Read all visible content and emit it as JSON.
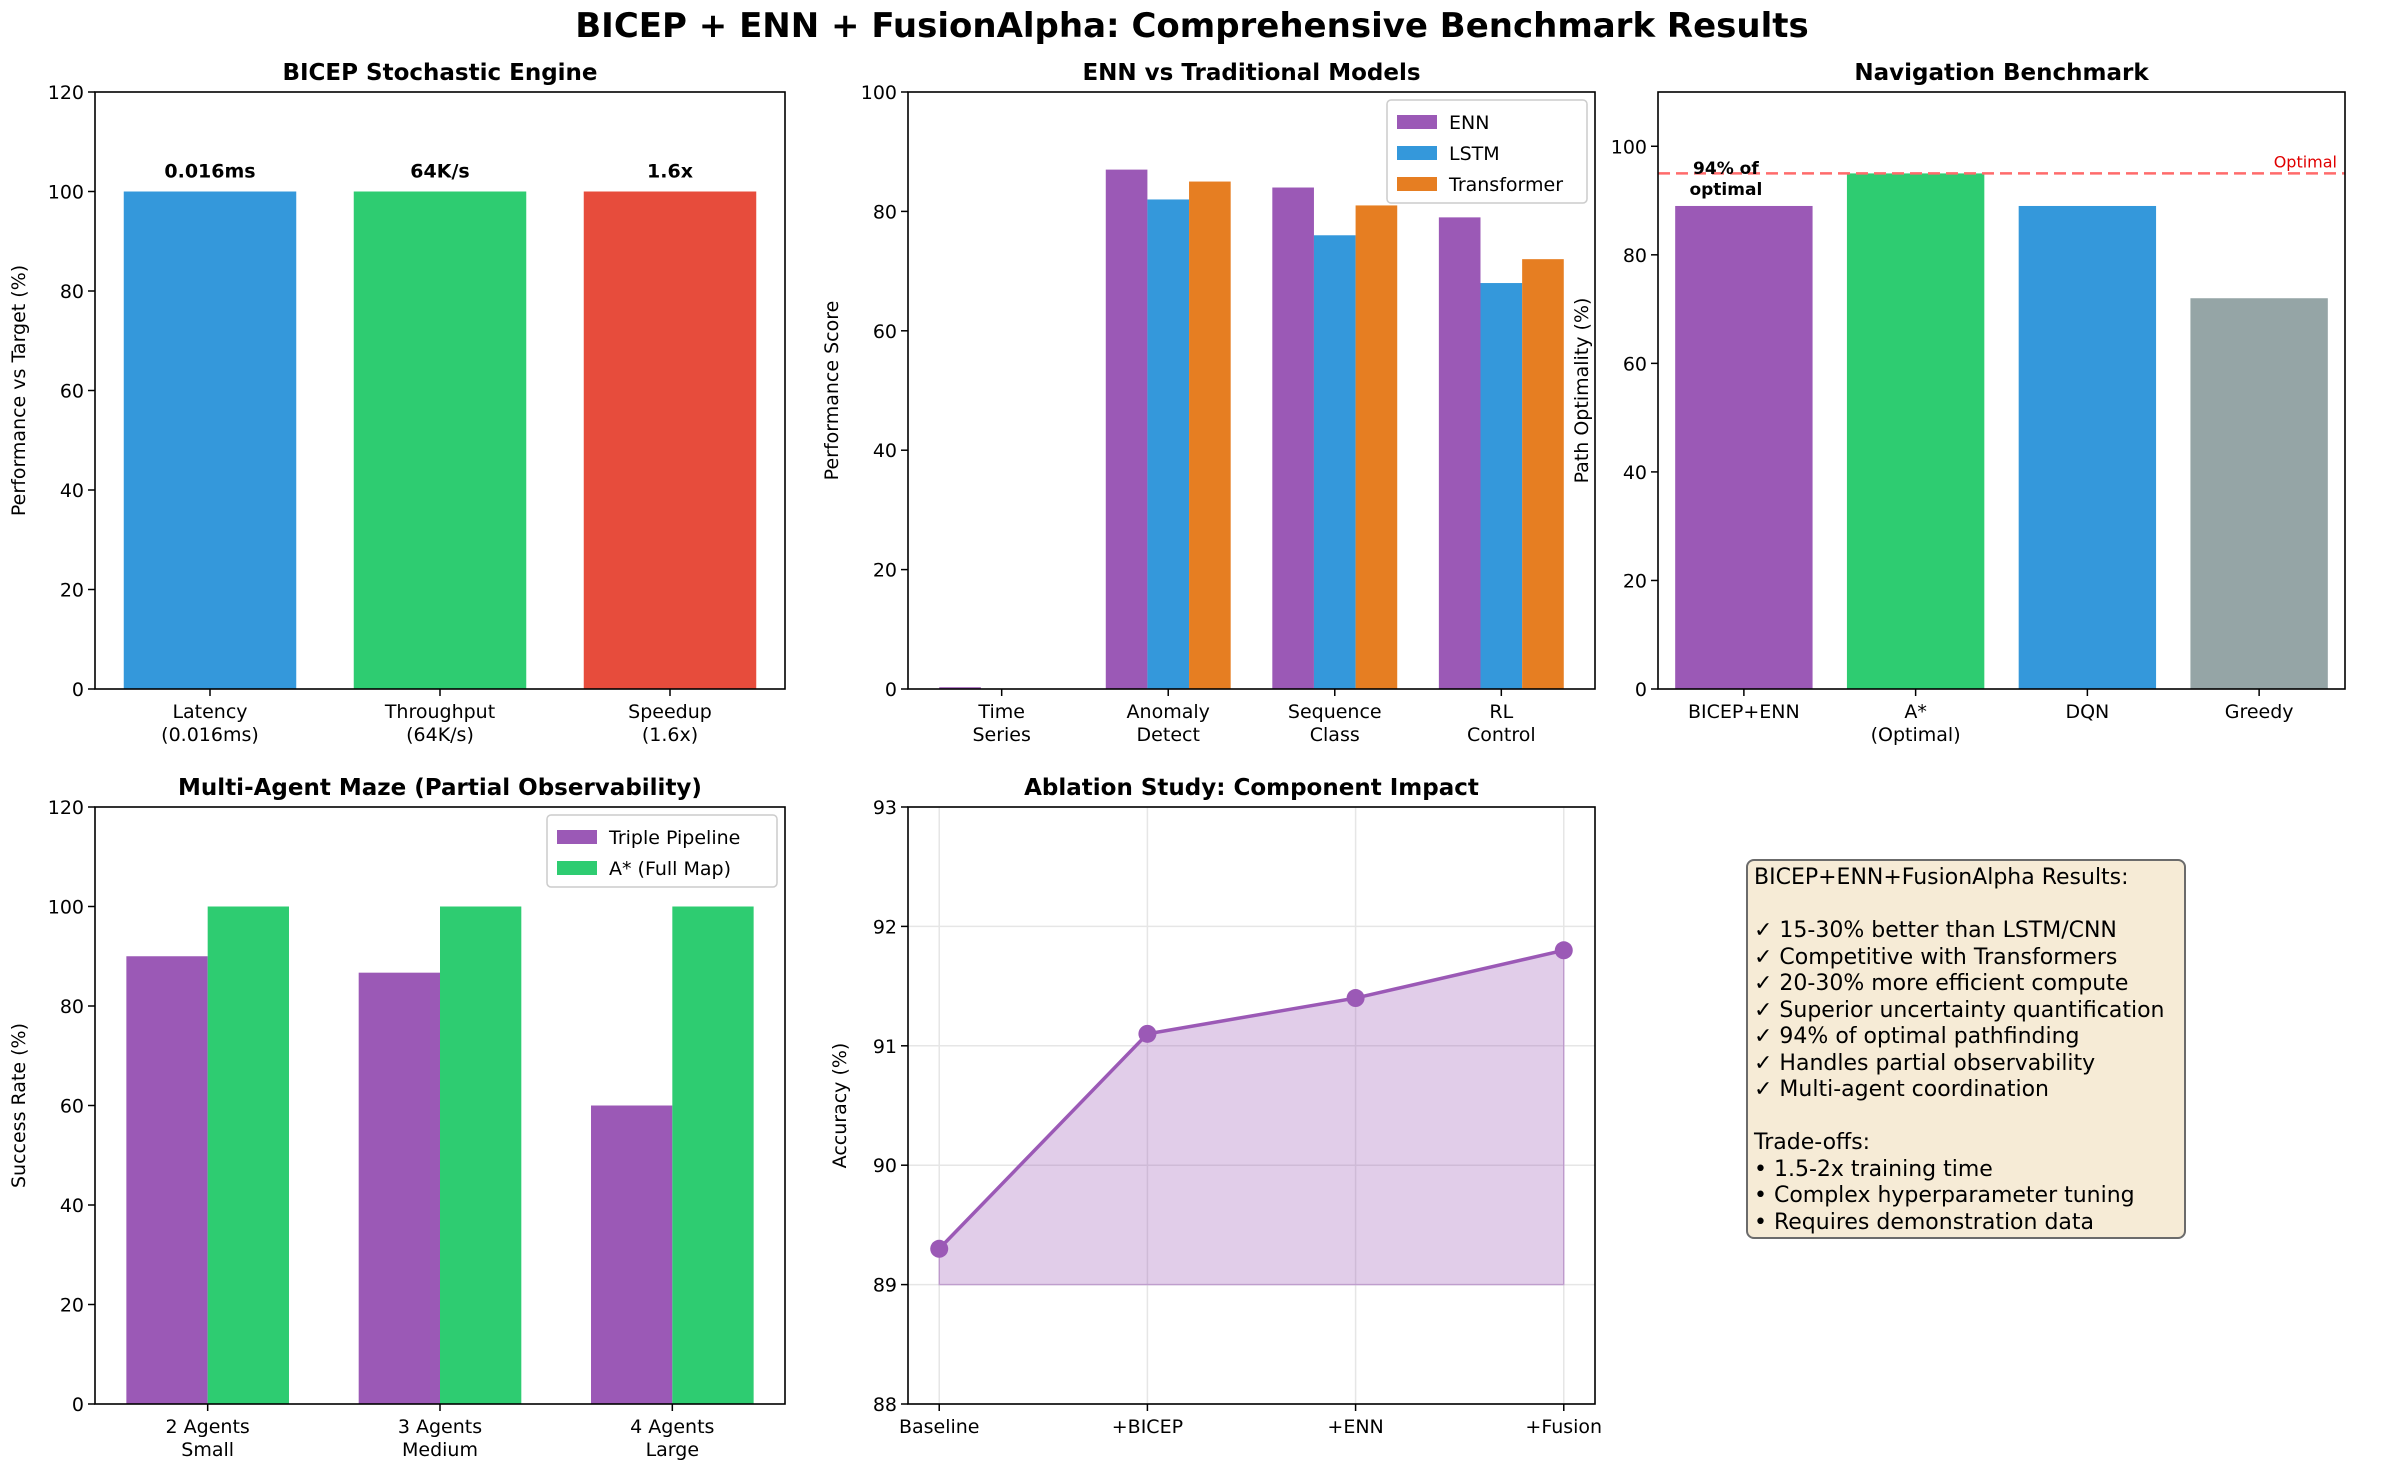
{
  "figure": {
    "title": "BICEP + ENN + FusionAlpha: Comprehensive Benchmark Results"
  },
  "chart_data": [
    {
      "id": "p1",
      "type": "bar",
      "title": "BICEP Stochastic Engine",
      "xlabel": "",
      "ylabel": "Performance vs Target (%)",
      "ylim": [
        0,
        120
      ],
      "yticks": [
        0,
        20,
        40,
        60,
        80,
        100,
        120
      ],
      "categories": [
        [
          "Latency",
          "(0.016ms)"
        ],
        [
          "Throughput",
          "(64K/s)"
        ],
        [
          "Speedup",
          "(1.6x)"
        ]
      ],
      "values": [
        100,
        100,
        100
      ],
      "colors": [
        "#3498db",
        "#2ecc71",
        "#e74c3c"
      ],
      "data_labels": [
        "0.016ms",
        "64K/s",
        "1.6x"
      ],
      "grid": false
    },
    {
      "id": "p2",
      "type": "bar",
      "title": "ENN vs Traditional Models",
      "xlabel": "",
      "ylabel": "Performance Score",
      "ylim": [
        0,
        100
      ],
      "yticks": [
        0,
        20,
        40,
        60,
        80,
        100
      ],
      "categories": [
        [
          "Time",
          "Series"
        ],
        [
          "Anomaly",
          "Detect"
        ],
        [
          "Sequence",
          "Class"
        ],
        [
          "RL",
          "Control"
        ]
      ],
      "series": [
        {
          "name": "ENN",
          "color": "#9b59b6",
          "values": [
            0.3,
            87,
            84,
            79
          ]
        },
        {
          "name": "LSTM",
          "color": "#3498db",
          "values": [
            0,
            82,
            76,
            68
          ]
        },
        {
          "name": "Transformer",
          "color": "#e67e22",
          "values": [
            0,
            85,
            81,
            72
          ]
        }
      ],
      "legend": "top-right",
      "grid": false
    },
    {
      "id": "p3",
      "type": "bar",
      "title": "Navigation Benchmark",
      "xlabel": "",
      "ylabel": "Path Optimality (%)",
      "ylim": [
        0,
        110
      ],
      "yticks": [
        0,
        20,
        40,
        60,
        80,
        100
      ],
      "categories": [
        [
          "BICEP+ENN"
        ],
        [
          "A*",
          "(Optimal)"
        ],
        [
          "DQN"
        ],
        [
          "Greedy"
        ]
      ],
      "values": [
        89,
        95,
        89,
        72
      ],
      "colors": [
        "#9b59b6",
        "#2ecc71",
        "#3498db",
        "#95a5a6"
      ],
      "reference_line": {
        "value": 95,
        "label": "Optimal",
        "color": "#ff6b6b"
      },
      "annotation": [
        "94% of",
        "optimal"
      ],
      "grid": false
    },
    {
      "id": "p4",
      "type": "bar",
      "title": "Multi-Agent Maze (Partial Observability)",
      "xlabel": "",
      "ylabel": "Success Rate (%)",
      "ylim": [
        0,
        120
      ],
      "yticks": [
        0,
        20,
        40,
        60,
        80,
        100,
        120
      ],
      "categories": [
        [
          "2 Agents",
          "Small"
        ],
        [
          "3 Agents",
          "Medium"
        ],
        [
          "4 Agents",
          "Large"
        ]
      ],
      "series": [
        {
          "name": "Triple Pipeline",
          "color": "#9b59b6",
          "values": [
            90,
            86.7,
            60
          ]
        },
        {
          "name": "A* (Full Map)",
          "color": "#2ecc71",
          "values": [
            100,
            100,
            100
          ]
        }
      ],
      "legend": "top-right",
      "grid": false
    },
    {
      "id": "p5",
      "type": "area",
      "title": "Ablation Study: Component Impact",
      "xlabel": "",
      "ylabel": "Accuracy (%)",
      "ylim": [
        88,
        93
      ],
      "yticks": [
        88,
        89,
        90,
        91,
        92,
        93
      ],
      "categories": [
        [
          "Baseline"
        ],
        [
          "+BICEP"
        ],
        [
          "+ENN"
        ],
        [
          "+Fusion"
        ]
      ],
      "values": [
        89.3,
        91.1,
        91.4,
        91.8
      ],
      "fill_baseline": 89,
      "color": "#9b59b6",
      "grid": true
    }
  ],
  "summary": {
    "lines": [
      "BICEP+ENN+FusionAlpha Results:",
      "",
      "✓ 15-30% better than LSTM/CNN",
      "✓ Competitive with Transformers",
      "✓ 20-30% more efficient compute",
      "✓ Superior uncertainty quantification",
      "✓ 94% of optimal pathfinding",
      "✓ Handles partial observability",
      "✓ Multi-agent coordination",
      "",
      "Trade-offs:",
      "• 1.5-2x training time",
      "• Complex hyperparameter tuning",
      "• Requires demonstration data"
    ]
  }
}
